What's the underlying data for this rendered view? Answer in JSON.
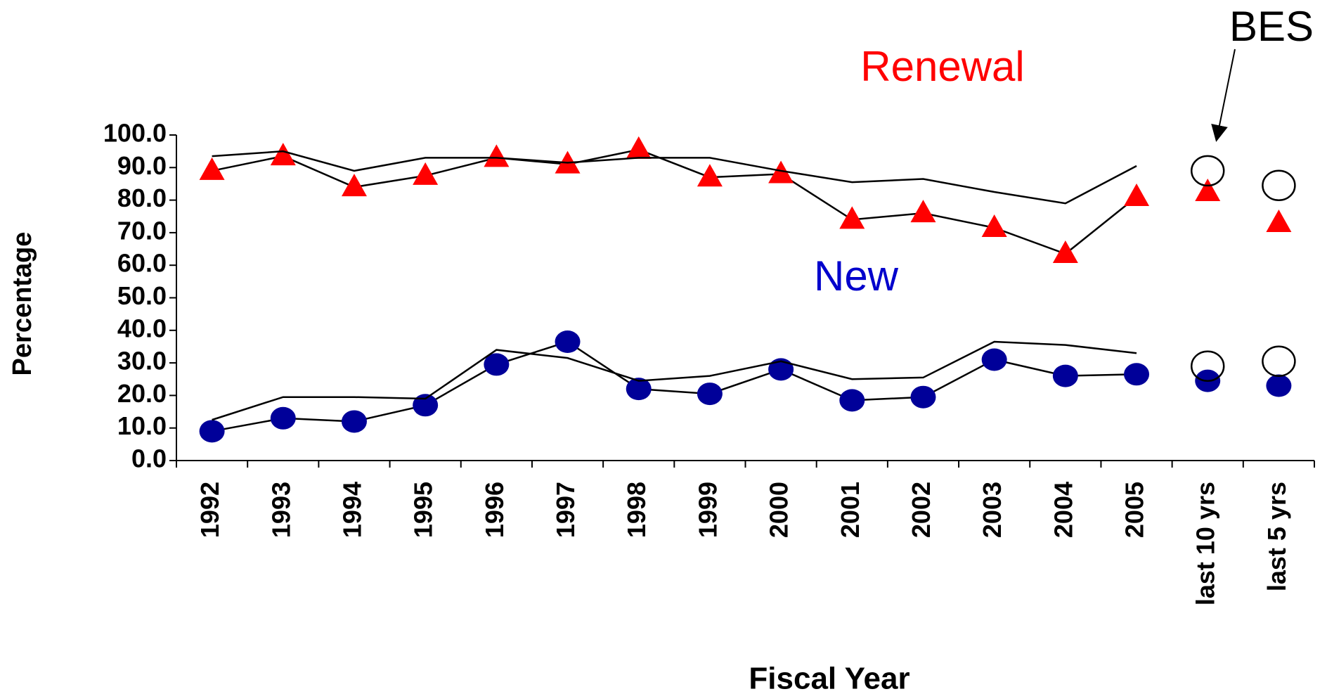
{
  "chart_data": {
    "type": "line",
    "x_label": "Fiscal Year",
    "y_label": "Percentage",
    "annotations": [
      {
        "text": "BES"
      }
    ],
    "categories": [
      "1992",
      "1993",
      "1994",
      "1995",
      "1996",
      "1997",
      "1998",
      "1999",
      "2000",
      "2001",
      "2002",
      "2003",
      "2004",
      "2005",
      "last 10 yrs",
      "last 5 yrs"
    ],
    "series": [
      {
        "name": "Renewal",
        "color": "#ff0000",
        "marker": "triangle",
        "values": [
          89,
          93.5,
          84,
          87.5,
          93,
          91,
          95.5,
          87,
          88,
          74,
          76,
          71.5,
          63.5,
          81,
          82.5,
          73
        ]
      },
      {
        "color": "#000000",
        "marker": "open-circle",
        "values": [
          93.5,
          95,
          89,
          93,
          93,
          91.5,
          93,
          93,
          89,
          85.5,
          86.5,
          82.5,
          79,
          90.5,
          89,
          84.5
        ]
      },
      {
        "name": "New",
        "color": "#000099",
        "marker": "circle",
        "values": [
          9,
          13,
          12,
          17,
          29.5,
          36.5,
          22,
          20.5,
          28,
          18.5,
          19.5,
          31,
          26,
          26.5,
          24.5,
          23
        ]
      },
      {
        "color": "#000000",
        "marker": "open-circle",
        "values": [
          12.5,
          19.5,
          19.5,
          19,
          34,
          31.5,
          24.5,
          26,
          30.5,
          25,
          25.5,
          36.5,
          35.5,
          33,
          29,
          30.5
        ]
      }
    ],
    "ylim": [
      0,
      100
    ],
    "yticks": [
      {
        "value": 0,
        "label": "0.0"
      },
      {
        "value": 10,
        "label": "10.0"
      },
      {
        "value": 20,
        "label": "20.0"
      },
      {
        "value": 30,
        "label": "30.0"
      },
      {
        "value": 40,
        "label": "40.0"
      },
      {
        "value": 50,
        "label": "50.0"
      },
      {
        "value": 60,
        "label": "60.0"
      },
      {
        "value": 70,
        "label": "70.0"
      },
      {
        "value": 80,
        "label": "80.0"
      },
      {
        "value": 90,
        "label": "90.0"
      },
      {
        "value": 100,
        "label": "100.0"
      }
    ],
    "grid": false
  }
}
